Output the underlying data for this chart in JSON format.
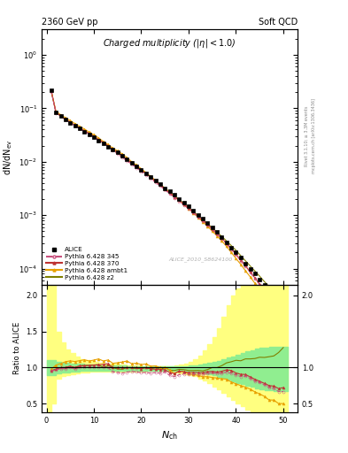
{
  "title_left": "2360 GeV pp",
  "title_right": "Soft QCD",
  "main_title": "Charged multiplicity (|η| < 1.0)",
  "ylabel_main": "dN/dN_ev",
  "ylabel_ratio": "Ratio to ALICE",
  "xlabel": "N_{ch}",
  "right_label_top": "Rivet 3.1.10; ≥ 3.3M events",
  "right_label_bottom": "mcplots.cern.ch [arXiv:1306.3436]",
  "watermark": "ALICE_2010_S8624100",
  "ylim_main_log": [
    5e-05,
    3.0
  ],
  "ylim_ratio": [
    0.38,
    2.15
  ],
  "xlim": [
    -1,
    53
  ],
  "alice_x": [
    1,
    2,
    3,
    4,
    5,
    6,
    7,
    8,
    9,
    10,
    11,
    12,
    13,
    14,
    15,
    16,
    17,
    18,
    19,
    20,
    21,
    22,
    23,
    24,
    25,
    26,
    27,
    28,
    29,
    30,
    31,
    32,
    33,
    34,
    35,
    36,
    37,
    38,
    39,
    40,
    41,
    42,
    43,
    44,
    45,
    46,
    47,
    48,
    49,
    50
  ],
  "alice_y": [
    0.22,
    0.085,
    0.072,
    0.062,
    0.054,
    0.048,
    0.042,
    0.037,
    0.033,
    0.029,
    0.025,
    0.022,
    0.019,
    0.017,
    0.015,
    0.013,
    0.011,
    0.0095,
    0.0082,
    0.0071,
    0.006,
    0.0052,
    0.0044,
    0.0038,
    0.0032,
    0.0028,
    0.0024,
    0.002,
    0.0017,
    0.00145,
    0.00122,
    0.00102,
    0.00086,
    0.00071,
    0.00058,
    0.00048,
    0.00039,
    0.00031,
    0.00025,
    0.0002,
    0.00016,
    0.000125,
    0.0001,
    8e-05,
    6.3e-05,
    5e-05,
    4e-05,
    3.1e-05,
    2.4e-05,
    1.8e-05
  ],
  "p345_x": [
    1,
    2,
    3,
    4,
    5,
    6,
    7,
    8,
    9,
    10,
    11,
    12,
    13,
    14,
    15,
    16,
    17,
    18,
    19,
    20,
    21,
    22,
    23,
    24,
    25,
    26,
    27,
    28,
    29,
    30,
    31,
    32,
    33,
    34,
    35,
    36,
    37,
    38,
    39,
    40,
    41,
    42,
    43,
    44,
    45,
    46,
    47,
    48,
    49,
    50
  ],
  "p345_y": [
    0.21,
    0.082,
    0.071,
    0.061,
    0.054,
    0.047,
    0.042,
    0.037,
    0.033,
    0.029,
    0.025,
    0.022,
    0.019,
    0.016,
    0.014,
    0.012,
    0.0103,
    0.009,
    0.0077,
    0.0066,
    0.0056,
    0.0048,
    0.0041,
    0.0035,
    0.003,
    0.0025,
    0.0021,
    0.0018,
    0.00155,
    0.00132,
    0.00111,
    0.00093,
    0.00078,
    0.00065,
    0.00054,
    0.00044,
    0.00036,
    0.00029,
    0.00023,
    0.00018,
    0.00014,
    0.00011,
    8.5e-05,
    6.5e-05,
    5e-05,
    3.8e-05,
    2.9e-05,
    2.2e-05,
    1.6e-05,
    1.2e-05
  ],
  "p370_x": [
    1,
    2,
    3,
    4,
    5,
    6,
    7,
    8,
    9,
    10,
    11,
    12,
    13,
    14,
    15,
    16,
    17,
    18,
    19,
    20,
    21,
    22,
    23,
    24,
    25,
    26,
    27,
    28,
    29,
    30,
    31,
    32,
    33,
    34,
    35,
    36,
    37,
    38,
    39,
    40,
    41,
    42,
    43,
    44,
    45,
    46,
    47,
    48,
    49,
    50
  ],
  "p370_y": [
    0.21,
    0.083,
    0.072,
    0.062,
    0.055,
    0.048,
    0.043,
    0.038,
    0.034,
    0.03,
    0.026,
    0.023,
    0.02,
    0.017,
    0.015,
    0.013,
    0.011,
    0.0095,
    0.0082,
    0.007,
    0.006,
    0.0051,
    0.0043,
    0.0037,
    0.0031,
    0.0026,
    0.0022,
    0.0019,
    0.0016,
    0.00135,
    0.00114,
    0.00095,
    0.0008,
    0.00067,
    0.00055,
    0.00045,
    0.00037,
    0.0003,
    0.00024,
    0.000185,
    0.000145,
    0.000113,
    8.7e-05,
    6.7e-05,
    5.1e-05,
    3.9e-05,
    3e-05,
    2.3e-05,
    1.7e-05,
    1.3e-05
  ],
  "pambt_x": [
    1,
    2,
    3,
    4,
    5,
    6,
    7,
    8,
    9,
    10,
    11,
    12,
    13,
    14,
    15,
    16,
    17,
    18,
    19,
    20,
    21,
    22,
    23,
    24,
    25,
    26,
    27,
    28,
    29,
    30,
    31,
    32,
    33,
    34,
    35,
    36,
    37,
    38,
    39,
    40,
    41,
    42,
    43,
    44,
    45,
    46,
    47,
    48,
    49,
    50
  ],
  "pambt_y": [
    0.215,
    0.088,
    0.076,
    0.067,
    0.059,
    0.052,
    0.046,
    0.041,
    0.036,
    0.032,
    0.028,
    0.024,
    0.021,
    0.018,
    0.016,
    0.014,
    0.012,
    0.01,
    0.0087,
    0.0074,
    0.0063,
    0.0053,
    0.0045,
    0.0038,
    0.0032,
    0.0027,
    0.0022,
    0.0019,
    0.0016,
    0.00133,
    0.0011,
    0.00091,
    0.00075,
    0.00062,
    0.0005,
    0.00041,
    0.00033,
    0.00026,
    0.0002,
    0.000155,
    0.00012,
    9.1e-05,
    7e-05,
    5.3e-05,
    4e-05,
    3e-05,
    2.2e-05,
    1.7e-05,
    1.2e-05,
    9e-06
  ],
  "pz2_x": [
    1,
    2,
    3,
    4,
    5,
    6,
    7,
    8,
    9,
    10,
    11,
    12,
    13,
    14,
    15,
    16,
    17,
    18,
    19,
    20,
    21,
    22,
    23,
    24,
    25,
    26,
    27,
    28,
    29,
    30,
    31,
    32,
    33,
    34,
    35,
    36,
    37,
    38,
    39,
    40,
    41,
    42,
    43,
    44,
    45,
    46,
    47,
    48,
    49,
    50
  ],
  "pz2_y": [
    0.21,
    0.083,
    0.072,
    0.062,
    0.055,
    0.048,
    0.043,
    0.038,
    0.034,
    0.03,
    0.026,
    0.022,
    0.0195,
    0.017,
    0.0147,
    0.0127,
    0.011,
    0.0094,
    0.0081,
    0.007,
    0.006,
    0.0051,
    0.0044,
    0.0037,
    0.0032,
    0.0027,
    0.0023,
    0.00195,
    0.00165,
    0.00139,
    0.00117,
    0.00098,
    0.00082,
    0.00069,
    0.00058,
    0.00048,
    0.0004,
    0.00033,
    0.00027,
    0.00022,
    0.000175,
    0.00014,
    0.000112,
    9e-05,
    7.2e-05,
    5.7e-05,
    4.6e-05,
    3.6e-05,
    2.9e-05,
    2.3e-05
  ],
  "color_alice": "#000000",
  "color_345": "#c8507d",
  "color_370": "#be3232",
  "color_ambt": "#e8a000",
  "color_z2": "#808000",
  "band_yellow_x": [
    0,
    1,
    2,
    3,
    4,
    5,
    6,
    7,
    8,
    9,
    10,
    11,
    12,
    13,
    14,
    15,
    16,
    17,
    18,
    19,
    20,
    21,
    22,
    23,
    24,
    25,
    26,
    27,
    28,
    29,
    30,
    31,
    32,
    33,
    34,
    35,
    36,
    37,
    38,
    39,
    40,
    41,
    42,
    43,
    44,
    45,
    46,
    47,
    48,
    49,
    50,
    51
  ],
  "band_yellow_low": [
    0.38,
    0.5,
    0.85,
    0.88,
    0.9,
    0.91,
    0.92,
    0.93,
    0.935,
    0.94,
    0.94,
    0.94,
    0.94,
    0.94,
    0.94,
    0.94,
    0.94,
    0.94,
    0.94,
    0.94,
    0.94,
    0.95,
    0.95,
    0.95,
    0.95,
    0.95,
    0.94,
    0.93,
    0.92,
    0.91,
    0.9,
    0.88,
    0.85,
    0.82,
    0.78,
    0.74,
    0.7,
    0.65,
    0.6,
    0.55,
    0.5,
    0.46,
    0.42,
    0.39,
    0.37,
    0.36,
    0.35,
    0.34,
    0.33,
    0.33,
    0.33,
    0.38
  ],
  "band_yellow_high": [
    2.15,
    2.15,
    1.5,
    1.35,
    1.25,
    1.2,
    1.15,
    1.12,
    1.1,
    1.09,
    1.08,
    1.07,
    1.06,
    1.055,
    1.05,
    1.045,
    1.04,
    1.035,
    1.03,
    1.025,
    1.02,
    1.02,
    1.02,
    1.02,
    1.02,
    1.02,
    1.02,
    1.03,
    1.04,
    1.06,
    1.08,
    1.12,
    1.17,
    1.24,
    1.32,
    1.42,
    1.55,
    1.7,
    1.87,
    2.0,
    2.1,
    2.15,
    2.15,
    2.15,
    2.15,
    2.15,
    2.15,
    2.15,
    2.15,
    2.15,
    2.15,
    2.15
  ],
  "band_green_low": [
    0.9,
    0.9,
    0.92,
    0.93,
    0.935,
    0.94,
    0.945,
    0.95,
    0.955,
    0.955,
    0.955,
    0.955,
    0.955,
    0.955,
    0.955,
    0.955,
    0.955,
    0.955,
    0.955,
    0.955,
    0.956,
    0.957,
    0.958,
    0.959,
    0.96,
    0.96,
    0.958,
    0.956,
    0.953,
    0.949,
    0.944,
    0.937,
    0.929,
    0.918,
    0.905,
    0.89,
    0.873,
    0.854,
    0.833,
    0.812,
    0.79,
    0.77,
    0.75,
    0.73,
    0.71,
    0.7,
    0.69,
    0.68,
    0.67,
    0.67,
    0.67,
    0.67
  ],
  "band_green_high": [
    1.1,
    1.1,
    1.08,
    1.07,
    1.065,
    1.06,
    1.055,
    1.05,
    1.045,
    1.04,
    1.038,
    1.035,
    1.032,
    1.03,
    1.028,
    1.026,
    1.024,
    1.022,
    1.02,
    1.018,
    1.016,
    1.015,
    1.014,
    1.013,
    1.013,
    1.013,
    1.014,
    1.016,
    1.019,
    1.023,
    1.028,
    1.035,
    1.043,
    1.053,
    1.065,
    1.079,
    1.095,
    1.113,
    1.134,
    1.158,
    1.18,
    1.2,
    1.22,
    1.24,
    1.26,
    1.27,
    1.28,
    1.29,
    1.29,
    1.29,
    1.29,
    1.29
  ]
}
